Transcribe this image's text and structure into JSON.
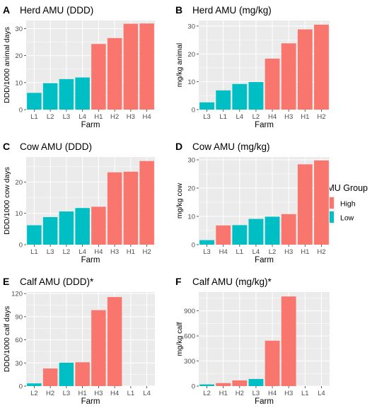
{
  "colors": {
    "high": "#F8766D",
    "low": "#00BFC4",
    "panel_bg": "#EBEBEB",
    "grid": "#FFFFFF",
    "text": "#000000",
    "tick_text": "#4D4D4D"
  },
  "legend": {
    "title": "AMU Group",
    "items": [
      {
        "label": "High",
        "group": "High"
      },
      {
        "label": "Low",
        "group": "Low"
      }
    ],
    "placement": "right"
  },
  "chart_data": [
    {
      "tag": "A",
      "title": "Herd AMU (DDD)",
      "type": "bar",
      "xlabel": "Farm",
      "ylabel": "DDD/1000 animal days",
      "ylim": [
        0,
        33
      ],
      "yticks": [
        0,
        10,
        20,
        30
      ],
      "categories": [
        "L1",
        "L2",
        "L3",
        "L4",
        "H1",
        "H2",
        "H3",
        "H4"
      ],
      "values": [
        6.2,
        9.8,
        11.3,
        11.9,
        24.3,
        26.5,
        31.8,
        31.9
      ],
      "groups": [
        "Low",
        "Low",
        "Low",
        "Low",
        "High",
        "High",
        "High",
        "High"
      ]
    },
    {
      "tag": "B",
      "title": "Herd AMU (mg/kg)",
      "type": "bar",
      "xlabel": "Farm",
      "ylabel": "mg/kg animal",
      "ylim": [
        0,
        32
      ],
      "yticks": [
        0,
        10,
        20,
        30
      ],
      "categories": [
        "L3",
        "L1",
        "L4",
        "L2",
        "H4",
        "H3",
        "H1",
        "H2"
      ],
      "values": [
        2.6,
        6.9,
        9.2,
        9.9,
        18.3,
        23.8,
        28.8,
        30.5
      ],
      "groups": [
        "Low",
        "Low",
        "Low",
        "Low",
        "High",
        "High",
        "High",
        "High"
      ]
    },
    {
      "tag": "C",
      "title": "Cow AMU (DDD)",
      "type": "bar",
      "xlabel": "Farm",
      "ylabel": "DDD/1000 cow days",
      "ylim": [
        0,
        28
      ],
      "yticks": [
        0,
        10,
        20
      ],
      "categories": [
        "L1",
        "L3",
        "L2",
        "L4",
        "H4",
        "H3",
        "H1",
        "H2"
      ],
      "values": [
        6.2,
        8.8,
        10.6,
        11.7,
        12.1,
        23.1,
        23.3,
        26.7
      ],
      "groups": [
        "Low",
        "Low",
        "Low",
        "Low",
        "High",
        "High",
        "High",
        "High"
      ]
    },
    {
      "tag": "D",
      "title": "Cow AMU (mg/kg)",
      "type": "bar",
      "xlabel": "Farm",
      "ylabel": "mg/kg cow",
      "ylim": [
        0,
        31
      ],
      "yticks": [
        0,
        10,
        20,
        30
      ],
      "categories": [
        "L3",
        "H4",
        "L1",
        "L4",
        "L2",
        "H3",
        "H1",
        "H2"
      ],
      "values": [
        1.6,
        6.8,
        6.9,
        9.1,
        9.9,
        10.8,
        28.4,
        29.8
      ],
      "groups": [
        "Low",
        "High",
        "Low",
        "Low",
        "Low",
        "High",
        "High",
        "High"
      ]
    },
    {
      "tag": "E",
      "title": "Calf AMU (DDD)*",
      "type": "bar",
      "xlabel": "Farm",
      "ylabel": "DDD/1000 calf days",
      "ylim": [
        0,
        122
      ],
      "yticks": [
        0,
        30,
        60,
        90,
        120
      ],
      "categories": [
        "L2",
        "H2",
        "L3",
        "H1",
        "H3",
        "H4",
        "L1",
        "L4"
      ],
      "values": [
        3.5,
        22.8,
        30.3,
        30.9,
        98.5,
        115.5,
        0,
        0
      ],
      "groups": [
        "Low",
        "High",
        "Low",
        "High",
        "High",
        "High",
        "Low",
        "Low"
      ]
    },
    {
      "tag": "F",
      "title": "Calf AMU (mg/kg)*",
      "type": "bar",
      "xlabel": "Farm",
      "ylabel": "mg/kg calf",
      "ylim": [
        0,
        1125
      ],
      "yticks": [
        0,
        300,
        600,
        900
      ],
      "categories": [
        "L2",
        "H1",
        "H2",
        "L3",
        "H4",
        "H3",
        "L1",
        "L4"
      ],
      "values": [
        20,
        36,
        68,
        85,
        543,
        1072,
        0,
        0
      ],
      "groups": [
        "Low",
        "High",
        "High",
        "Low",
        "High",
        "High",
        "Low",
        "Low"
      ]
    }
  ]
}
